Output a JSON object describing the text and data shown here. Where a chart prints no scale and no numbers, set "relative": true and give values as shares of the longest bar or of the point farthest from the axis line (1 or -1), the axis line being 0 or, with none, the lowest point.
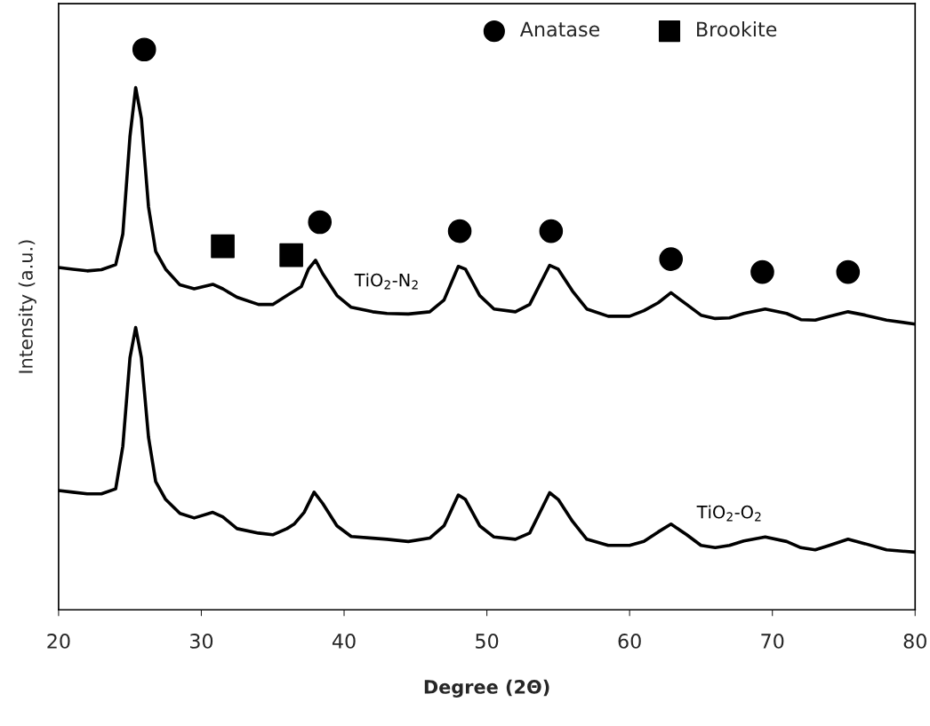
{
  "chart_data": {
    "type": "line",
    "relative": true,
    "xlabel": "Degree (2Θ)",
    "ylabel": "Intensity (a.u.)",
    "xlim": [
      20,
      80
    ],
    "xticks": [
      20,
      30,
      40,
      50,
      60,
      70,
      80
    ],
    "tick_labels": "x",
    "grid": false,
    "legend": "top right",
    "series": [
      {
        "name": "TiO$_{2}$-N$_{2}$",
        "color": "#000000",
        "x": [
          20,
          21,
          22,
          23,
          24,
          24.5,
          25,
          25.4,
          25.8,
          26.3,
          26.8,
          27.5,
          28.5,
          29.5,
          30.8,
          31.5,
          32.5,
          34,
          35,
          36,
          36.5,
          37,
          37.5,
          38,
          38.5,
          39.5,
          40.5,
          42,
          43,
          44.5,
          46,
          47,
          48,
          48.5,
          49.5,
          50.5,
          52,
          53,
          54.4,
          55,
          56,
          57,
          58.5,
          60,
          61,
          62,
          62.9,
          64,
          65,
          66,
          67,
          68,
          69.5,
          71,
          72,
          73,
          74,
          75.3,
          76.5,
          78,
          80
        ],
        "values": [
          0.611,
          0.608,
          0.605,
          0.607,
          0.616,
          0.671,
          0.845,
          0.932,
          0.877,
          0.719,
          0.64,
          0.608,
          0.58,
          0.573,
          0.581,
          0.573,
          0.558,
          0.545,
          0.545,
          0.561,
          0.569,
          0.577,
          0.608,
          0.624,
          0.6,
          0.561,
          0.54,
          0.532,
          0.529,
          0.528,
          0.532,
          0.553,
          0.613,
          0.608,
          0.561,
          0.537,
          0.532,
          0.545,
          0.615,
          0.608,
          0.569,
          0.537,
          0.524,
          0.524,
          0.534,
          0.548,
          0.566,
          0.545,
          0.526,
          0.52,
          0.521,
          0.529,
          0.537,
          0.529,
          0.518,
          0.517,
          0.524,
          0.532,
          0.526,
          0.517,
          0.51
        ]
      },
      {
        "name": "TiO$_{2}$-O$_{2}$",
        "color": "#000000",
        "x": [
          20,
          21,
          22,
          23,
          24,
          24.5,
          25,
          25.4,
          25.8,
          26.3,
          26.8,
          27.5,
          28.5,
          29.5,
          30.8,
          31.5,
          32.5,
          34,
          35,
          36,
          36.5,
          37.2,
          37.9,
          38.5,
          39.5,
          40.5,
          42,
          43,
          44.5,
          46,
          47,
          48,
          48.5,
          49.5,
          50.5,
          52,
          53,
          54.4,
          55,
          56,
          57,
          58.5,
          60,
          61,
          62,
          62.9,
          64,
          65,
          66,
          67,
          68,
          69.5,
          71,
          72,
          73,
          74,
          75.3,
          76.5,
          78,
          80
        ],
        "values": [
          0.213,
          0.21,
          0.207,
          0.207,
          0.216,
          0.292,
          0.45,
          0.504,
          0.45,
          0.308,
          0.229,
          0.197,
          0.172,
          0.164,
          0.174,
          0.166,
          0.145,
          0.137,
          0.134,
          0.145,
          0.153,
          0.174,
          0.21,
          0.19,
          0.15,
          0.131,
          0.128,
          0.126,
          0.122,
          0.128,
          0.15,
          0.205,
          0.197,
          0.15,
          0.13,
          0.126,
          0.137,
          0.209,
          0.197,
          0.158,
          0.126,
          0.115,
          0.115,
          0.122,
          0.139,
          0.153,
          0.134,
          0.115,
          0.111,
          0.115,
          0.123,
          0.13,
          0.122,
          0.111,
          0.107,
          0.115,
          0.126,
          0.118,
          0.107,
          0.103
        ]
      },
      {
        "type": "scatter",
        "name": "Anatase",
        "color": "#000000",
        "marker": "circle",
        "x": [
          26,
          38.3,
          48.1,
          54.5,
          62.9,
          69.3,
          75.3
        ],
        "values": [
          1.0,
          0.692,
          0.676,
          0.676,
          0.626,
          0.603,
          0.603
        ]
      },
      {
        "type": "scatter",
        "name": "Brookite",
        "color": "#000000",
        "marker": "square",
        "x": [
          31.5,
          36.3
        ],
        "values": [
          0.649,
          0.633
        ]
      }
    ]
  }
}
